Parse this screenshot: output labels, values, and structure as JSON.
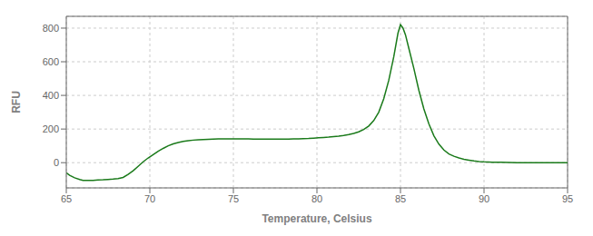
{
  "chart_data": {
    "type": "line",
    "xlabel": "Temperature, Celsius",
    "ylabel": "RFU",
    "color": "#1a7a1a",
    "grid": true,
    "xlim": [
      65,
      95
    ],
    "ylim": [
      -150,
      870
    ],
    "xticks": [
      65,
      70,
      75,
      80,
      85,
      90,
      95
    ],
    "yticks": [
      0,
      200,
      400,
      600,
      800
    ],
    "x": [
      65.0,
      65.2,
      65.5,
      65.8,
      66.0,
      66.3,
      66.6,
      66.9,
      67.2,
      67.5,
      67.8,
      68.1,
      68.4,
      68.7,
      69.0,
      69.3,
      69.6,
      69.9,
      70.2,
      70.5,
      70.8,
      71.1,
      71.4,
      71.7,
      72.0,
      72.3,
      72.6,
      72.9,
      73.2,
      73.5,
      73.8,
      74.1,
      74.4,
      74.7,
      75.0,
      75.3,
      75.6,
      75.9,
      76.2,
      76.5,
      76.8,
      77.1,
      77.4,
      77.7,
      78.0,
      78.3,
      78.6,
      78.9,
      79.2,
      79.5,
      79.8,
      80.1,
      80.4,
      80.7,
      81.0,
      81.3,
      81.6,
      81.9,
      82.2,
      82.5,
      82.8,
      83.1,
      83.4,
      83.7,
      84.0,
      84.3,
      84.6,
      84.85,
      85.0,
      85.15,
      85.3,
      85.5,
      85.8,
      86.1,
      86.4,
      86.7,
      87.0,
      87.3,
      87.6,
      87.9,
      88.2,
      88.5,
      88.8,
      89.1,
      89.4,
      89.7,
      90.0,
      90.5,
      91.0,
      91.5,
      92.0,
      92.5,
      93.0,
      93.5,
      94.0,
      94.5,
      95.0
    ],
    "values": [
      -60,
      -75,
      -90,
      -100,
      -105,
      -105,
      -105,
      -103,
      -102,
      -100,
      -98,
      -95,
      -88,
      -70,
      -48,
      -22,
      5,
      28,
      48,
      68,
      85,
      100,
      112,
      120,
      126,
      131,
      134,
      136,
      138,
      139,
      140,
      141,
      141,
      141,
      141,
      141,
      141,
      141,
      140,
      140,
      140,
      140,
      140,
      140,
      140,
      140,
      141,
      142,
      143,
      144,
      146,
      148,
      150,
      152,
      155,
      158,
      162,
      167,
      174,
      183,
      197,
      218,
      250,
      300,
      380,
      490,
      630,
      770,
      820,
      800,
      760,
      680,
      560,
      430,
      320,
      230,
      160,
      110,
      75,
      52,
      38,
      28,
      20,
      15,
      10,
      7,
      5,
      3,
      2,
      1,
      0,
      0,
      0,
      0,
      0,
      0,
      0
    ]
  }
}
